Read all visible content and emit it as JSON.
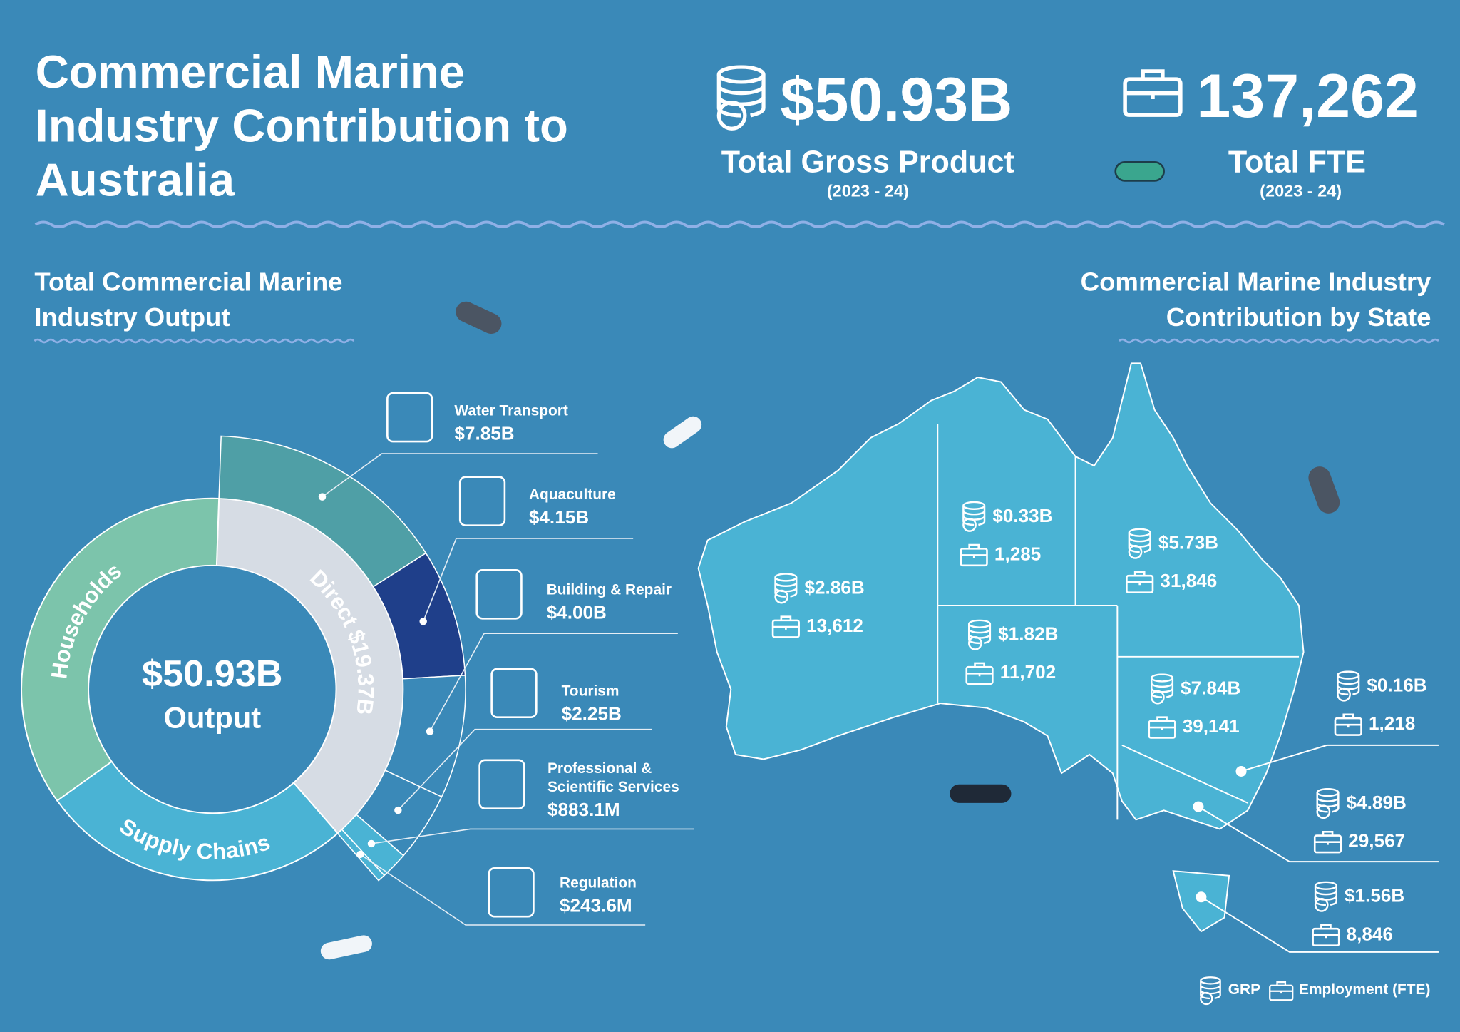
{
  "header": {
    "title": "Commercial Marine Industry Contribution to Australia"
  },
  "stats": [
    {
      "value": "$50.93B",
      "label": "Total Gross Product",
      "period": "(2023 - 24)"
    },
    {
      "value": "137,262",
      "label": "Total FTE",
      "period": "(2023 - 24)"
    }
  ],
  "chart_data": {
    "type": "sunburst",
    "title": "Total Commercial Marine Industry Output",
    "total": 50.93,
    "total_label": "$50.93B",
    "total_caption": "Output",
    "categories": [
      "Direct",
      "Supply Chains",
      "Households"
    ],
    "values": [
      19.37,
      13.5,
      18.06
    ],
    "value_labels": [
      "$19.37B",
      null,
      null
    ],
    "colors": [
      "#d6dce4",
      "#4ab3d4",
      "#7cc4ab"
    ],
    "segments": {
      "categories": [
        "Water Transport",
        "Aquaculture",
        "Building & Repair",
        "Tourism",
        "Professional & Scientific Services",
        "Regulation"
      ],
      "values": [
        7.85,
        4.15,
        4.0,
        2.25,
        0.8831,
        0.2436
      ],
      "value_labels": [
        "$7.85B",
        "$4.15B",
        "$4.00B",
        "$2.25B",
        "$883.1M",
        "$243.6M"
      ],
      "colors": [
        "#4f9fa6",
        "#1f3f8a",
        "#3a89b8",
        "#3a89b8",
        "#4ab3d4",
        "#4ab3d4"
      ]
    }
  },
  "map": {
    "title": "Commercial Marine Industry Contribution by State",
    "states": [
      {
        "grp": "$2.86B",
        "fte": "13,612"
      },
      {
        "grp": "$0.33B",
        "fte": "1,285"
      },
      {
        "grp": "$5.73B",
        "fte": "31,846"
      },
      {
        "grp": "$1.82B",
        "fte": "11,702"
      },
      {
        "grp": "$7.84B",
        "fte": "39,141"
      },
      {
        "grp": "$0.16B",
        "fte": "1,218"
      },
      {
        "grp": "$4.89B",
        "fte": "29,567"
      },
      {
        "grp": "$1.56B",
        "fte": "8,846"
      }
    ],
    "legend": [
      "GRP",
      "Employment (FTE)"
    ]
  }
}
